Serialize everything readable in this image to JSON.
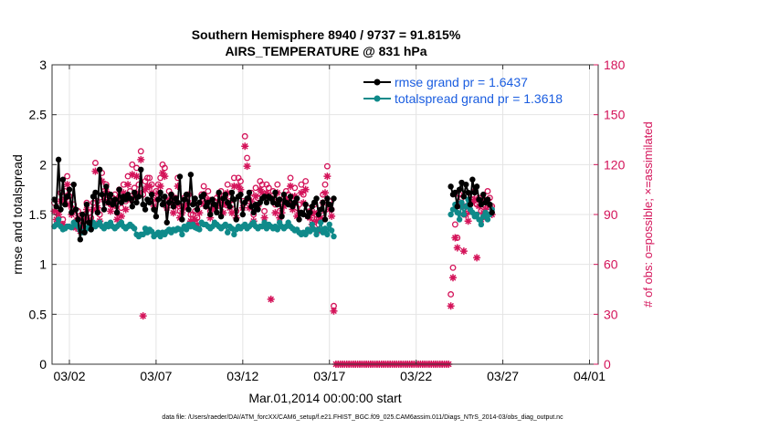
{
  "chart_data": {
    "type": "line",
    "title_line1": "Southern Hemisphere 8940 / 9737 = 91.815%",
    "title_line2": "AIRS_TEMPERATURE @ 831 hPa",
    "xlabel": "Mar.01,2014 00:00:00 start",
    "ylabel_left": "rmse and totalspread",
    "ylabel_right": "# of obs: o=possible; ×=assimilated",
    "footer": "data file: /Users/raeder/DAI/ATM_forcXX/CAM6_setup/f.e21.FHIST_BGC.f09_025.CAM6assim.011/Diags_NTrS_2014-03/obs_diag_output.nc",
    "x_unit": "days since Mar.01,2014 00:00",
    "xlim": [
      0,
      31.5
    ],
    "ylim_left": [
      0,
      3
    ],
    "ylim_right": [
      0,
      180
    ],
    "yticks_left": [
      0,
      0.5,
      1,
      1.5,
      2,
      2.5,
      3
    ],
    "yticklabels_left": [
      "0",
      "0.5",
      "1",
      "1.5",
      "2",
      "2.5",
      "3"
    ],
    "yticks_right": [
      0,
      30,
      60,
      90,
      120,
      150,
      180
    ],
    "yticklabels_right": [
      "0",
      "30",
      "60",
      "90",
      "120",
      "150",
      "180"
    ],
    "xticks": [
      1,
      6,
      11,
      16,
      21,
      26,
      31
    ],
    "xticklabels": [
      "03/02",
      "03/07",
      "03/12",
      "03/17",
      "03/22",
      "03/27",
      "04/01"
    ],
    "grid": true,
    "legend_position": "top-right",
    "colors": {
      "rmse": "#000000",
      "spread": "#0f8a8a",
      "obs": "#d4145a",
      "legend_text": "#1a5de0",
      "grid": "#e4e4e4"
    },
    "series": [
      {
        "name": "rmse grand pr = 1.6437",
        "axis": "left",
        "marker": "dot",
        "values": [
          1.65,
          1.58,
          2.05,
          1.55,
          1.85,
          1.6,
          1.68,
          1.75,
          1.52,
          1.8,
          1.55,
          1.45,
          1.25,
          1.5,
          1.32,
          1.6,
          1.42,
          1.35,
          1.68,
          1.72,
          1.52,
          1.95,
          1.7,
          1.55,
          1.78,
          1.62,
          1.7,
          1.6,
          1.65,
          1.52,
          1.75,
          1.62,
          1.68,
          1.65,
          1.7,
          1.66,
          1.58,
          1.72,
          1.62,
          1.68,
          1.95,
          1.6,
          1.55,
          1.65,
          1.62,
          1.7,
          1.55,
          1.48,
          1.65,
          1.72,
          1.6,
          1.68,
          1.42,
          1.62,
          1.7,
          1.58,
          1.66,
          1.62,
          1.88,
          1.45,
          1.65,
          1.7,
          1.55,
          1.9,
          1.6,
          1.66,
          1.55,
          1.62,
          1.68,
          1.7,
          1.58,
          1.62,
          1.5,
          1.65,
          1.6,
          1.52,
          1.72,
          1.48,
          1.66,
          1.7,
          1.62,
          1.58,
          1.72,
          1.65,
          1.45,
          1.68,
          1.7,
          1.5,
          1.62,
          1.66,
          1.72,
          1.58,
          1.52,
          1.6,
          1.55,
          1.62,
          1.66,
          1.68,
          1.62,
          1.68,
          1.66,
          1.62,
          1.72,
          1.6,
          1.65,
          1.48,
          1.7,
          1.62,
          1.6,
          1.68,
          1.58,
          1.62,
          1.66,
          1.45,
          1.52,
          1.5,
          1.6,
          1.48,
          1.52,
          1.58,
          1.62,
          1.66,
          1.5,
          1.55,
          1.62,
          1.45,
          1.66,
          1.6,
          1.55,
          1.66,
          null,
          null,
          null,
          null,
          null,
          null,
          null,
          null,
          null,
          null,
          null,
          null,
          null,
          null,
          null,
          null,
          null,
          null,
          null,
          null,
          null,
          null,
          null,
          null,
          null,
          null,
          null,
          null,
          null,
          null,
          null,
          null,
          null,
          null,
          null,
          null,
          null,
          null,
          null,
          null,
          null,
          null,
          null,
          null,
          null,
          null,
          null,
          null,
          null,
          null,
          null,
          null,
          null,
          1.78,
          1.7,
          1.72,
          1.58,
          1.75,
          1.82,
          1.68,
          1.8,
          1.72,
          1.6,
          1.85,
          1.72,
          1.78,
          1.65,
          1.6,
          1.7,
          1.62,
          1.65,
          1.6,
          1.52
        ],
        "x_start": 0.125,
        "x_step": 0.125
      },
      {
        "name": "totalspread grand pr = 1.3618",
        "axis": "left",
        "marker": "dot",
        "values": [
          1.38,
          1.4,
          1.45,
          1.38,
          1.35,
          1.36,
          1.38,
          1.38,
          1.37,
          1.42,
          1.4,
          1.38,
          1.34,
          1.32,
          1.33,
          1.36,
          1.38,
          1.35,
          1.42,
          1.38,
          1.4,
          1.42,
          1.38,
          1.36,
          1.4,
          1.38,
          1.42,
          1.38,
          1.36,
          1.38,
          1.4,
          1.42,
          1.38,
          1.36,
          1.38,
          1.4,
          1.38,
          1.36,
          1.3,
          1.28,
          1.3,
          1.3,
          1.36,
          1.32,
          1.35,
          1.33,
          1.28,
          1.3,
          1.32,
          1.28,
          1.32,
          1.3,
          1.33,
          1.35,
          1.32,
          1.35,
          1.34,
          1.36,
          1.35,
          1.3,
          1.38,
          1.35,
          1.4,
          1.38,
          1.4,
          1.37,
          1.36,
          1.35,
          1.42,
          1.4,
          1.4,
          1.38,
          1.36,
          1.38,
          1.42,
          1.4,
          1.38,
          1.36,
          1.38,
          1.4,
          1.32,
          1.38,
          1.36,
          1.3,
          1.35,
          1.38,
          1.36,
          1.38,
          1.4,
          1.36,
          1.38,
          1.4,
          1.42,
          1.38,
          1.36,
          1.38,
          1.38,
          1.42,
          1.36,
          1.4,
          1.38,
          1.36,
          1.38,
          1.35,
          1.42,
          1.38,
          1.36,
          1.38,
          1.42,
          1.38,
          1.36,
          1.34,
          1.35,
          1.32,
          1.3,
          1.32,
          1.3,
          1.35,
          1.33,
          1.4,
          1.35,
          1.3,
          1.35,
          1.42,
          1.32,
          1.36,
          1.3,
          1.4,
          1.34,
          1.28,
          null,
          null,
          null,
          null,
          null,
          null,
          null,
          null,
          null,
          null,
          null,
          null,
          null,
          null,
          null,
          null,
          null,
          null,
          null,
          null,
          null,
          null,
          null,
          null,
          null,
          null,
          null,
          null,
          null,
          null,
          null,
          null,
          null,
          null,
          null,
          null,
          null,
          null,
          null,
          null,
          null,
          null,
          null,
          null,
          null,
          null,
          null,
          null,
          null,
          null,
          null,
          null,
          null,
          1.5,
          1.55,
          1.6,
          1.52,
          1.45,
          1.62,
          1.5,
          1.58,
          1.65,
          1.55,
          1.52,
          1.48,
          1.5,
          1.45,
          1.4,
          1.48,
          1.52,
          1.45,
          1.5,
          1.55
        ],
        "x_start": 0.125,
        "x_step": 0.125
      },
      {
        "name": "obs possible",
        "axis": "right",
        "marker": "circle",
        "values": [
          97,
          91,
          93,
          103,
          87,
          104,
          113,
          101,
          94,
          96,
          86,
          92,
          83,
          86,
          90,
          97,
          91,
          88,
          97,
          121,
          98,
          90,
          115,
          104,
          108,
          102,
          96,
          100,
          102,
          91,
          105,
          94,
          108,
          98,
          113,
          104,
          120,
          106,
          118,
          108,
          128,
          102,
          110,
          112,
          112,
          108,
          100,
          104,
          108,
          112,
          120,
          118,
          98,
          104,
          102,
          96,
          100,
          112,
          92,
          95,
          100,
          98,
          102,
          90,
          90,
          92,
          88,
          96,
          102,
          107,
          100,
          104,
          92,
          97,
          98,
          100,
          102,
          104,
          96,
          101,
          108,
          98,
          96,
          112,
          92,
          112,
          110,
          98,
          137,
          124,
          98,
          103,
          90,
          106,
          100,
          110,
          108,
          92,
          108,
          106,
          100,
          104,
          96,
          108,
          92,
          96,
          100,
          104,
          102,
          112,
          98,
          106,
          94,
          96,
          108,
          102,
          110,
          94,
          92,
          88,
          96,
          90,
          84,
          92,
          102,
          108,
          119,
          98,
          93,
          35,
          null,
          null,
          null,
          null,
          null,
          null,
          null,
          null,
          null,
          null,
          null,
          null,
          null,
          null,
          null,
          null,
          null,
          null,
          null,
          null,
          null,
          null,
          null,
          null,
          null,
          null,
          null,
          null,
          null,
          null,
          null,
          null,
          null,
          null,
          null,
          null,
          null,
          null,
          null,
          null,
          null,
          null,
          null,
          null,
          null,
          null,
          null,
          null,
          null,
          null,
          null,
          null,
          null,
          42,
          58,
          84,
          76,
          102,
          100,
          90,
          95,
          92,
          98,
          102,
          104,
          96,
          100,
          92,
          96,
          98,
          104,
          100,
          95
        ],
        "x_start": 0.125,
        "x_step": 0.125
      },
      {
        "name": "obs assimilated",
        "axis": "right",
        "marker": "star",
        "values": [
          92,
          87,
          90,
          98,
          84,
          99,
          108,
          96,
          90,
          92,
          82,
          88,
          80,
          82,
          86,
          93,
          87,
          84,
          93,
          116,
          94,
          86,
          110,
          99,
          104,
          97,
          92,
          95,
          97,
          87,
          100,
          89,
          103,
          93,
          108,
          99,
          114,
          101,
          113,
          103,
          123,
          29,
          105,
          107,
          107,
          103,
          95,
          99,
          103,
          107,
          115,
          113,
          94,
          99,
          97,
          91,
          95,
          107,
          88,
          91,
          95,
          94,
          97,
          86,
          86,
          87,
          84,
          91,
          97,
          102,
          95,
          99,
          88,
          93,
          94,
          95,
          97,
          99,
          91,
          96,
          103,
          94,
          91,
          107,
          88,
          107,
          105,
          94,
          131,
          119,
          94,
          98,
          86,
          101,
          95,
          105,
          103,
          88,
          103,
          101,
          39,
          99,
          91,
          103,
          88,
          91,
          95,
          99,
          97,
          107,
          93,
          101,
          89,
          91,
          103,
          97,
          105,
          89,
          88,
          84,
          91,
          86,
          80,
          88,
          97,
          103,
          113,
          93,
          89,
          32,
          0,
          0,
          0,
          0,
          0,
          0,
          0,
          0,
          0,
          0,
          0,
          0,
          0,
          0,
          0,
          0,
          0,
          0,
          0,
          0,
          0,
          0,
          0,
          0,
          0,
          0,
          0,
          0,
          0,
          0,
          0,
          0,
          0,
          0,
          0,
          0,
          0,
          0,
          0,
          0,
          0,
          0,
          0,
          0,
          0,
          0,
          0,
          0,
          0,
          0,
          0,
          0,
          0,
          35,
          52,
          76,
          70,
          96,
          95,
          68,
          90,
          86,
          92,
          97,
          99,
          64,
          95,
          87,
          91,
          93,
          99,
          95,
          90
        ],
        "x_start": 0.125,
        "x_step": 0.125
      }
    ]
  }
}
